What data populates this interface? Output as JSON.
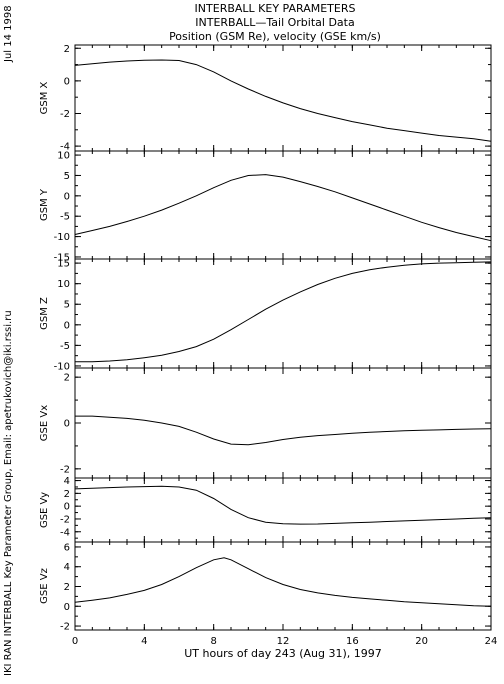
{
  "header": {
    "line1": "INTERBALL KEY PARAMETERS",
    "line2": "INTERBALL—Tail Orbital Data",
    "line3": "Position (GSM Re), velocity (GSE km/s)"
  },
  "side": {
    "date": "Jul 14 1998",
    "credit": "IKI RAN INTERBALL Key Parameter Group, Email: apetrukovich@iki.rssi.ru"
  },
  "chart_data": {
    "type": "line",
    "xlabel": "UT hours of day 243 (Aug 31), 1997",
    "xlim": [
      0,
      24
    ],
    "xticks": [
      0,
      4,
      8,
      12,
      16,
      20,
      24
    ],
    "grid": false,
    "panels": [
      {
        "ylabel": "GSM X",
        "ylim": [
          -4.3,
          2.2
        ],
        "yticks": [
          -4,
          -2,
          0,
          2
        ],
        "series": [
          {
            "x": [
              0,
              1,
              2,
              3,
              4,
              5,
              6,
              7,
              8,
              9,
              10,
              11,
              12,
              13,
              14,
              15,
              16,
              17,
              18,
              19,
              20,
              21,
              22,
              23,
              24
            ],
            "y": [
              0.95,
              1.05,
              1.15,
              1.22,
              1.27,
              1.28,
              1.25,
              1.0,
              0.55,
              0.0,
              -0.5,
              -0.95,
              -1.35,
              -1.7,
              -2.0,
              -2.25,
              -2.5,
              -2.7,
              -2.9,
              -3.05,
              -3.2,
              -3.35,
              -3.45,
              -3.55,
              -3.7
            ]
          }
        ]
      },
      {
        "ylabel": "GSM Y",
        "ylim": [
          -15.5,
          11
        ],
        "yticks": [
          -15,
          -10,
          -5,
          0,
          5,
          10
        ],
        "series": [
          {
            "x": [
              0,
              1,
              2,
              3,
              4,
              5,
              6,
              7,
              8,
              9,
              10,
              11,
              12,
              13,
              14,
              15,
              16,
              17,
              18,
              19,
              20,
              21,
              22,
              23,
              24
            ],
            "y": [
              -9.5,
              -8.5,
              -7.5,
              -6.3,
              -5.0,
              -3.5,
              -1.8,
              0.0,
              2.0,
              3.8,
              5.0,
              5.2,
              4.6,
              3.5,
              2.3,
              1.0,
              -0.5,
              -2.0,
              -3.5,
              -5.0,
              -6.5,
              -7.8,
              -9.0,
              -10.0,
              -11.0
            ]
          }
        ]
      },
      {
        "ylabel": "GSM Z",
        "ylim": [
          -10.5,
          16
        ],
        "yticks": [
          -10,
          -5,
          0,
          5,
          10,
          15
        ],
        "series": [
          {
            "x": [
              0,
              1,
              2,
              3,
              4,
              5,
              6,
              7,
              8,
              9,
              10,
              11,
              12,
              13,
              14,
              15,
              16,
              17,
              18,
              19,
              20,
              21,
              22,
              23,
              24
            ],
            "y": [
              -9.0,
              -9.0,
              -8.8,
              -8.5,
              -8.0,
              -7.4,
              -6.5,
              -5.3,
              -3.5,
              -1.2,
              1.3,
              3.8,
              6.0,
              8.0,
              9.8,
              11.3,
              12.5,
              13.4,
              14.0,
              14.5,
              14.8,
              15.0,
              15.1,
              15.2,
              15.3
            ]
          }
        ]
      },
      {
        "ylabel": "GSE Vx",
        "ylim": [
          -2.4,
          2.4
        ],
        "yticks": [
          -2,
          0,
          2
        ],
        "series": [
          {
            "x": [
              0,
              1,
              2,
              3,
              4,
              5,
              6,
              7,
              8,
              9,
              10,
              11,
              12,
              13,
              14,
              15,
              16,
              17,
              18,
              19,
              20,
              21,
              22,
              23,
              24
            ],
            "y": [
              0.3,
              0.3,
              0.25,
              0.2,
              0.12,
              0.0,
              -0.15,
              -0.4,
              -0.7,
              -0.92,
              -0.95,
              -0.85,
              -0.72,
              -0.62,
              -0.55,
              -0.5,
              -0.45,
              -0.4,
              -0.37,
              -0.34,
              -0.32,
              -0.3,
              -0.28,
              -0.26,
              -0.25
            ]
          }
        ]
      },
      {
        "ylabel": "GSE Vy",
        "ylim": [
          -5.6,
          4.4
        ],
        "yticks": [
          -4,
          -2,
          0,
          2,
          4
        ],
        "series": [
          {
            "x": [
              0,
              1,
              2,
              3,
              4,
              5,
              6,
              7,
              8,
              9,
              10,
              11,
              12,
              13,
              14,
              15,
              16,
              17,
              18,
              19,
              20,
              21,
              22,
              23,
              24
            ],
            "y": [
              2.7,
              2.8,
              2.9,
              3.0,
              3.05,
              3.1,
              3.0,
              2.5,
              1.2,
              -0.5,
              -1.8,
              -2.5,
              -2.75,
              -2.8,
              -2.78,
              -2.7,
              -2.6,
              -2.5,
              -2.4,
              -2.3,
              -2.2,
              -2.1,
              -2.0,
              -1.9,
              -1.8
            ]
          }
        ]
      },
      {
        "ylabel": "GSE Vz",
        "ylim": [
          -2.4,
          6.5
        ],
        "yticks": [
          -2,
          0,
          2,
          4,
          6
        ],
        "series": [
          {
            "x": [
              0,
              1,
              2,
              3,
              4,
              5,
              6,
              7,
              8,
              8.6,
              9,
              10,
              11,
              12,
              13,
              14,
              15,
              16,
              17,
              18,
              19,
              20,
              21,
              22,
              23,
              24
            ],
            "y": [
              0.4,
              0.6,
              0.85,
              1.2,
              1.6,
              2.2,
              3.0,
              3.9,
              4.7,
              4.9,
              4.7,
              3.8,
              2.9,
              2.2,
              1.7,
              1.35,
              1.1,
              0.9,
              0.75,
              0.6,
              0.45,
              0.35,
              0.25,
              0.15,
              0.05,
              0.0
            ]
          }
        ]
      }
    ]
  }
}
